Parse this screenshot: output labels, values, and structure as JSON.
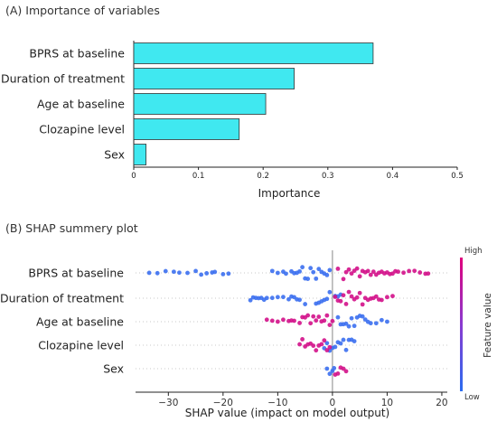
{
  "panel_a_title": "(A) Importance of variables",
  "panel_b_title": "(B) SHAP summery plot",
  "chart_data": [
    {
      "type": "bar",
      "orientation": "horizontal",
      "categories": [
        "BPRS at baseline",
        "Duration of treatment",
        "Age at baseline",
        "Clozapine level",
        "Sex"
      ],
      "values": [
        0.37,
        0.248,
        0.204,
        0.163,
        0.019
      ],
      "xlabel": "Importance",
      "xlim": [
        0,
        0.5
      ],
      "xticks": [
        "0",
        "0.1",
        "0.2",
        "0.3",
        "0.4",
        "0.5"
      ],
      "bar_color": "#40e8f0"
    },
    {
      "type": "scatter",
      "subtype": "beeswarm",
      "categories": [
        "BPRS at baseline",
        "Duration of treatment",
        "Age at baseline",
        "Clozapine level",
        "Sex"
      ],
      "xlabel": "SHAP value (impact on model output)",
      "xlim": [
        -36,
        21
      ],
      "xticks": [
        "−30",
        "−20",
        "−10",
        "0",
        "10",
        "20"
      ],
      "colorbar": {
        "label": "Feature value",
        "high": "High",
        "low": "Low",
        "high_color": "#e0007c",
        "low_color": "#2a6cf0"
      },
      "series": [
        {
          "feature": "BPRS at baseline",
          "low_x": [
            -33.5,
            -32,
            -30.5,
            -29,
            -28,
            -26.5,
            -25,
            -24,
            -23,
            -22,
            -21.5,
            -20,
            -19,
            -11,
            -10,
            -9,
            -8.5,
            -7.5,
            -7,
            -6.5,
            -6,
            -5.5,
            -5,
            -4.5,
            -4,
            -3.5,
            -3,
            -2.5,
            -2,
            -1.5,
            -1,
            -0.5
          ],
          "high_x": [
            1,
            2,
            2.5,
            3,
            3.5,
            4,
            4.5,
            5,
            5.5,
            6,
            6.5,
            7,
            7.5,
            8,
            8.5,
            9,
            9.5,
            10,
            10.5,
            11,
            11.5,
            12,
            13,
            14,
            15,
            16,
            17,
            17.5
          ]
        },
        {
          "feature": "Duration of treatment",
          "low_x": [
            -15,
            -14.5,
            -14,
            -13.5,
            -13,
            -12.5,
            -12,
            -11,
            -10,
            -9,
            -8,
            -7.5,
            -7,
            -6.5,
            -6,
            -5,
            -3,
            -2.5,
            -2,
            -1.5,
            -1,
            -0.5,
            0.5,
            1,
            1.5
          ],
          "high_x": [
            0.5,
            1,
            1.5,
            2,
            2.5,
            3,
            3.5,
            4,
            4.5,
            5,
            5.5,
            6,
            6.5,
            7,
            7.5,
            8,
            8.5,
            9,
            10,
            11
          ]
        },
        {
          "feature": "Age at baseline",
          "low_x": [
            1,
            1.5,
            2,
            2.5,
            3,
            3.5,
            4,
            4.5,
            5,
            5.5,
            6,
            6.5,
            7,
            8,
            9,
            10
          ],
          "high_x": [
            -12,
            -11,
            -10,
            -9,
            -8,
            -7.5,
            -7,
            -6,
            -5.5,
            -5,
            -4.5,
            -4,
            -3.5,
            -3,
            -2.5,
            -2,
            -1.5,
            -1,
            -0.5,
            0
          ]
        },
        {
          "feature": "Clozapine level",
          "low_x": [
            -1.5,
            -1,
            -0.5,
            0,
            0.5,
            1,
            1.5,
            2,
            2.5,
            3,
            3.5,
            4
          ],
          "high_x": [
            -6,
            -5.5,
            -5,
            -4.5,
            -4,
            -3.5,
            -3,
            -2.5,
            -2,
            -1.5,
            -1,
            -0.5
          ]
        },
        {
          "feature": "Sex",
          "low_x": [
            -1,
            -0.5,
            0,
            0.3
          ],
          "high_x": [
            0.5,
            1,
            1.5,
            2,
            2.5
          ]
        }
      ]
    }
  ]
}
